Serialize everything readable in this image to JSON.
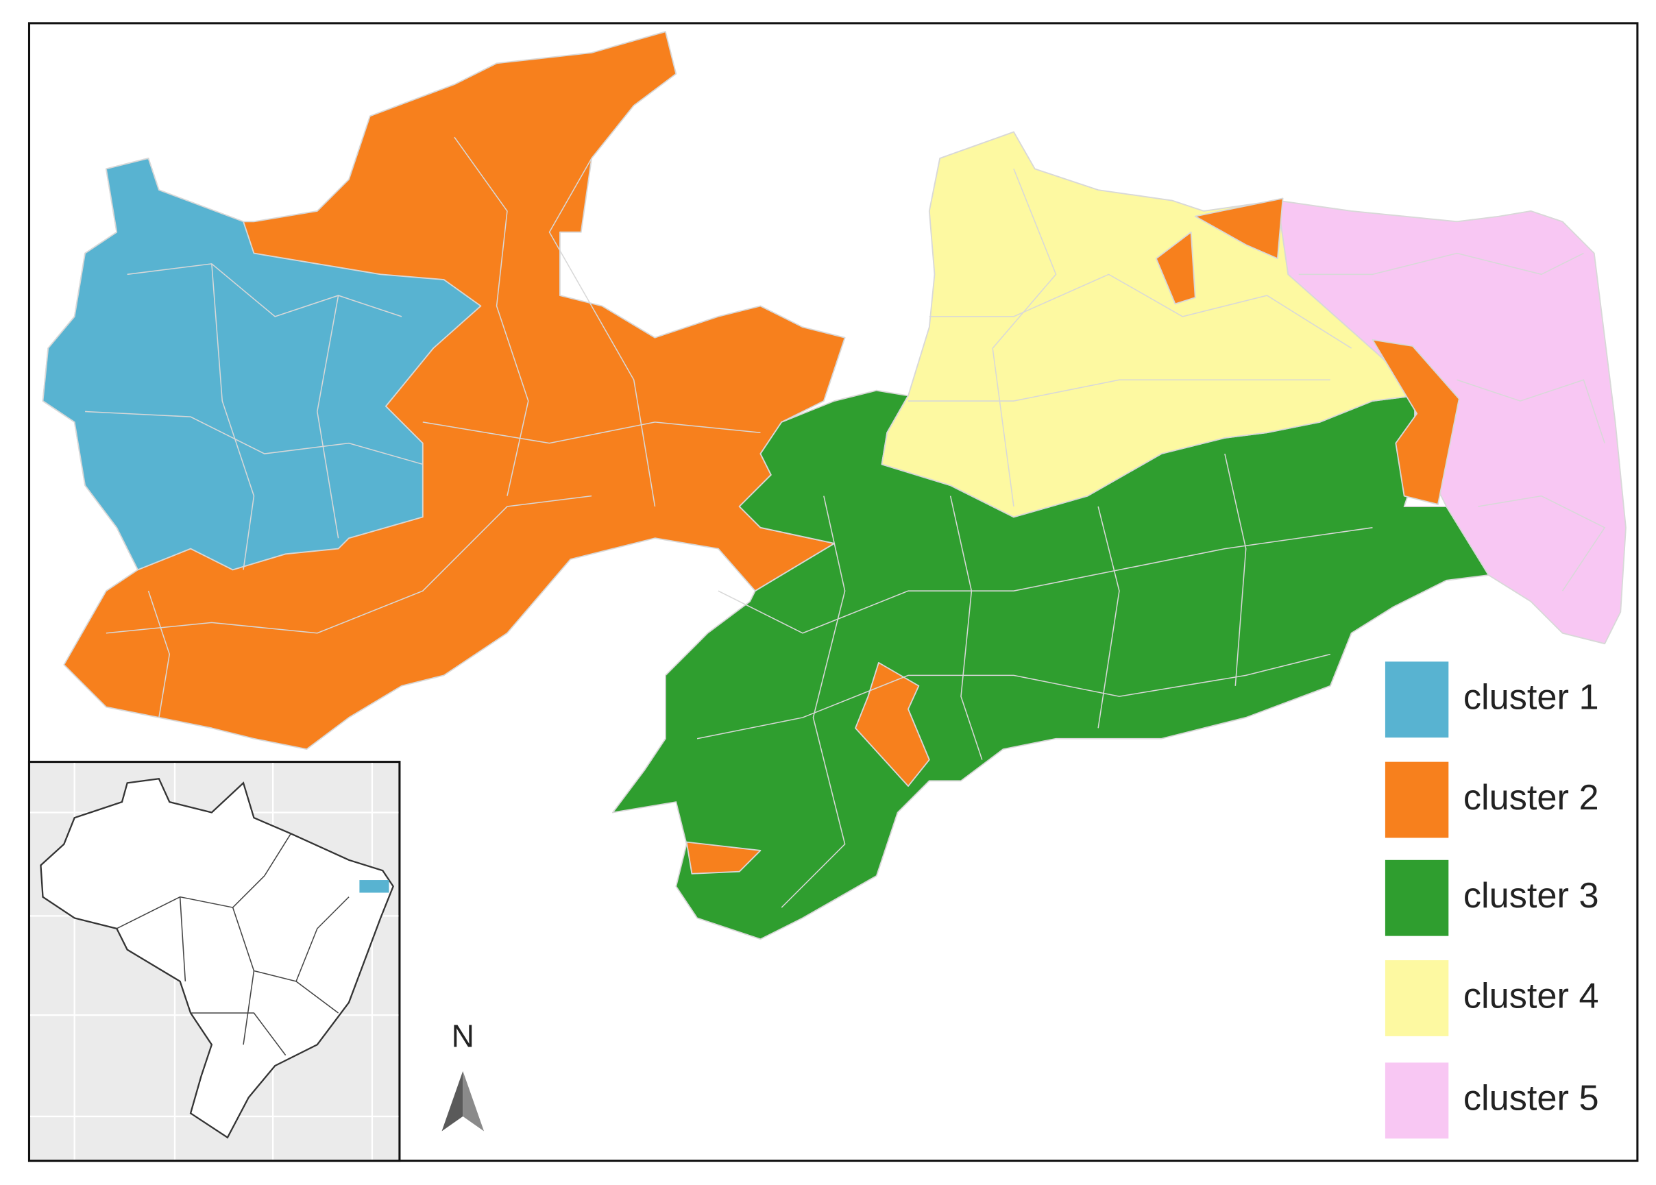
{
  "legend": [
    {
      "label": "cluster 1",
      "color": "#58b3d1"
    },
    {
      "label": "cluster 2",
      "color": "#f7801d"
    },
    {
      "label": "cluster 3",
      "color": "#2f9e2f"
    },
    {
      "label": "cluster 4",
      "color": "#fdf9a1"
    },
    {
      "label": "cluster 5",
      "color": "#f8c7f3"
    }
  ],
  "north_label": "N"
}
